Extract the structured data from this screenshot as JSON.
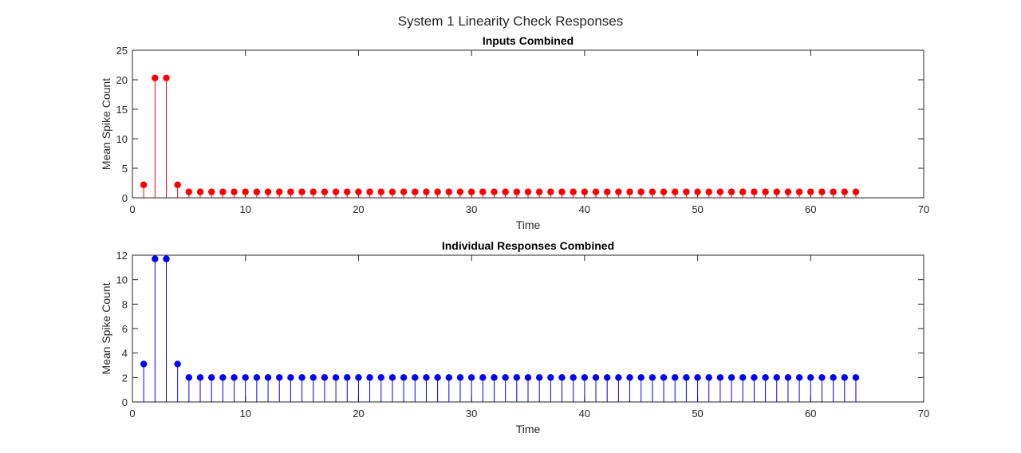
{
  "figure": {
    "title": "System 1 Linearity Check Responses"
  },
  "chart_data": [
    {
      "type": "stem",
      "title": "Inputs Combined",
      "xlabel": "Time",
      "ylabel": "Mean Spike Count",
      "xlim": [
        0,
        70
      ],
      "ylim": [
        0,
        25
      ],
      "xticks": [
        0,
        10,
        20,
        30,
        40,
        50,
        60,
        70
      ],
      "yticks": [
        0,
        5,
        10,
        15,
        20,
        25
      ],
      "color": "#ff0000",
      "grid": false,
      "series": [
        {
          "x": [
            1,
            2,
            3,
            4,
            5,
            6,
            7,
            8,
            9,
            10,
            11,
            12,
            13,
            14,
            15,
            16,
            17,
            18,
            19,
            20,
            21,
            22,
            23,
            24,
            25,
            26,
            27,
            28,
            29,
            30,
            31,
            32,
            33,
            34,
            35,
            36,
            37,
            38,
            39,
            40,
            41,
            42,
            43,
            44,
            45,
            46,
            47,
            48,
            49,
            50,
            51,
            52,
            53,
            54,
            55,
            56,
            57,
            58,
            59,
            60,
            61,
            62,
            63,
            64
          ],
          "y": [
            2.2,
            20.3,
            20.3,
            2.2,
            1,
            1,
            1,
            1,
            1,
            1,
            1,
            1,
            1,
            1,
            1,
            1,
            1,
            1,
            1,
            1,
            1,
            1,
            1,
            1,
            1,
            1,
            1,
            1,
            1,
            1,
            1,
            1,
            1,
            1,
            1,
            1,
            1,
            1,
            1,
            1,
            1,
            1,
            1,
            1,
            1,
            1,
            1,
            1,
            1,
            1,
            1,
            1,
            1,
            1,
            1,
            1,
            1,
            1,
            1,
            1,
            1,
            1,
            1,
            1
          ]
        }
      ]
    },
    {
      "type": "stem",
      "title": "Individual Responses Combined",
      "xlabel": "Time",
      "ylabel": "Mean Spike Count",
      "xlim": [
        0,
        70
      ],
      "ylim": [
        0,
        12
      ],
      "xticks": [
        0,
        10,
        20,
        30,
        40,
        50,
        60,
        70
      ],
      "yticks": [
        0,
        2,
        4,
        6,
        8,
        10,
        12
      ],
      "color": "#0000ff",
      "grid": false,
      "series": [
        {
          "x": [
            1,
            2,
            3,
            4,
            5,
            6,
            7,
            8,
            9,
            10,
            11,
            12,
            13,
            14,
            15,
            16,
            17,
            18,
            19,
            20,
            21,
            22,
            23,
            24,
            25,
            26,
            27,
            28,
            29,
            30,
            31,
            32,
            33,
            34,
            35,
            36,
            37,
            38,
            39,
            40,
            41,
            42,
            43,
            44,
            45,
            46,
            47,
            48,
            49,
            50,
            51,
            52,
            53,
            54,
            55,
            56,
            57,
            58,
            59,
            60,
            61,
            62,
            63,
            64
          ],
          "y": [
            3.1,
            11.7,
            11.7,
            3.1,
            2,
            2,
            2,
            2,
            2,
            2,
            2,
            2,
            2,
            2,
            2,
            2,
            2,
            2,
            2,
            2,
            2,
            2,
            2,
            2,
            2,
            2,
            2,
            2,
            2,
            2,
            2,
            2,
            2,
            2,
            2,
            2,
            2,
            2,
            2,
            2,
            2,
            2,
            2,
            2,
            2,
            2,
            2,
            2,
            2,
            2,
            2,
            2,
            2,
            2,
            2,
            2,
            2,
            2,
            2,
            2,
            2,
            2,
            2,
            2
          ]
        }
      ]
    }
  ]
}
